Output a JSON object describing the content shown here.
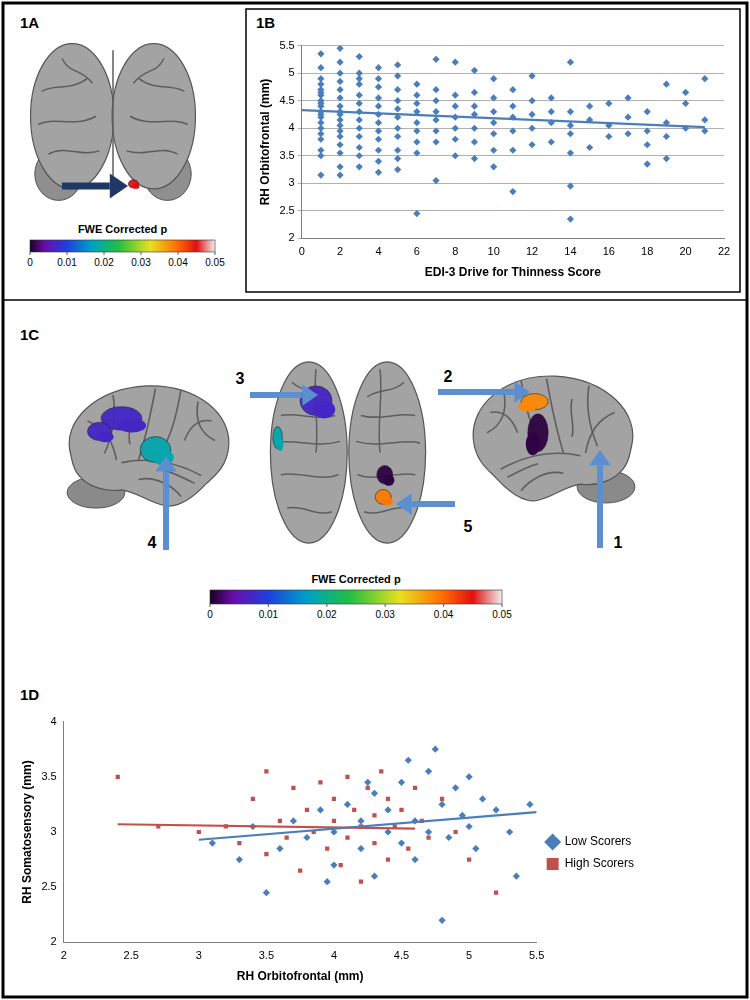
{
  "figure": {
    "panel_1A": {
      "label": "1A",
      "regions": [
        {
          "p": 0.045
        }
      ],
      "colorbar": {
        "title": "FWE Corrected p",
        "range": [
          0,
          0.05
        ],
        "ticks": [
          0,
          0.01,
          0.02,
          0.03,
          0.04,
          0.05
        ]
      }
    },
    "panel_1B": {
      "label": "1B"
    },
    "panel_1C": {
      "label": "1C",
      "regions": [
        {
          "label": "1",
          "p": 0.001
        },
        {
          "label": "2",
          "p": 0.038
        },
        {
          "label": "3",
          "p": 0.007
        },
        {
          "label": "4",
          "p": 0.018
        },
        {
          "label": "5",
          "p": 0.039
        }
      ],
      "colorbar": {
        "title": "FWE Corrected p",
        "range": [
          0,
          0.05
        ],
        "ticks": [
          0,
          0.01,
          0.02,
          0.03,
          0.04,
          0.05
        ]
      }
    },
    "panel_1D": {
      "label": "1D"
    }
  },
  "chart_data": [
    {
      "type": "scatter",
      "x_label": "EDI-3 Drive for Thinness Score",
      "y_label": "RH Orbitofrontal (mm)",
      "color": "#4a7ebb",
      "marker": "diamond",
      "grid": "y",
      "xlim": [
        0,
        22
      ],
      "xticks": [
        0,
        2,
        4,
        6,
        8,
        10,
        12,
        14,
        16,
        18,
        20,
        22
      ],
      "ylim": [
        2,
        5.5
      ],
      "yticks": [
        2,
        2.5,
        3,
        3.5,
        4,
        4.5,
        5,
        5.5
      ],
      "x": [
        1,
        1,
        1,
        1,
        1,
        1,
        1,
        1,
        1,
        1,
        1,
        1,
        1,
        1,
        1,
        1,
        1,
        1,
        1,
        1,
        2,
        2,
        2,
        2,
        2,
        2,
        2,
        2,
        2,
        2,
        2,
        2,
        2,
        2,
        2,
        2,
        2,
        3,
        3,
        3,
        3,
        3,
        3,
        3,
        3,
        3,
        3,
        3,
        3,
        3,
        4,
        4,
        4,
        4,
        4,
        4,
        4,
        4,
        4,
        4,
        4,
        4,
        5,
        5,
        5,
        5,
        5,
        5,
        5,
        5,
        5,
        5,
        5,
        6,
        6,
        6,
        6,
        6,
        6,
        6,
        6,
        6,
        7,
        7,
        7,
        7,
        7,
        7,
        7,
        7,
        8,
        8,
        8,
        8,
        8,
        8,
        8,
        9,
        9,
        9,
        9,
        9,
        9,
        9,
        10,
        10,
        10,
        10,
        10,
        10,
        10,
        11,
        11,
        11,
        11,
        11,
        11,
        12,
        12,
        12,
        12,
        12,
        13,
        13,
        13,
        13,
        14,
        14,
        14,
        14,
        14,
        14,
        14,
        15,
        15,
        15,
        16,
        16,
        16,
        17,
        17,
        17,
        18,
        18,
        18,
        18,
        19,
        19,
        19,
        19,
        20,
        20,
        20,
        21,
        21,
        21
      ],
      "values": [
        5.35,
        5.1,
        4.9,
        4.8,
        4.7,
        4.6,
        4.5,
        4.4,
        4.3,
        4.2,
        4.1,
        4.0,
        3.9,
        3.8,
        3.6,
        3.5,
        3.15,
        4.25,
        4.45,
        4.65,
        5.45,
        5.2,
        5.0,
        4.85,
        4.7,
        4.55,
        4.4,
        4.3,
        4.15,
        4.05,
        3.95,
        3.85,
        3.7,
        3.55,
        3.3,
        3.15,
        4.25,
        5.3,
        5.0,
        4.8,
        4.6,
        4.45,
        4.3,
        4.15,
        4.0,
        3.85,
        3.65,
        3.5,
        3.3,
        4.9,
        5.1,
        4.9,
        4.75,
        4.55,
        4.4,
        4.25,
        4.1,
        3.95,
        3.8,
        3.6,
        3.4,
        3.2,
        4.95,
        4.7,
        4.5,
        4.35,
        4.2,
        4.0,
        3.85,
        3.6,
        3.45,
        3.25,
        5.15,
        4.8,
        4.6,
        4.45,
        4.3,
        4.1,
        3.95,
        3.75,
        3.55,
        2.45,
        5.25,
        4.7,
        4.5,
        4.3,
        4.15,
        3.95,
        3.75,
        3.05,
        5.2,
        4.6,
        4.4,
        4.2,
        4.0,
        3.8,
        3.5,
        5.05,
        4.65,
        4.4,
        4.25,
        4.0,
        3.75,
        3.45,
        4.9,
        4.55,
        4.3,
        4.1,
        3.9,
        3.6,
        3.3,
        4.7,
        4.4,
        4.2,
        3.95,
        3.6,
        2.85,
        4.95,
        4.5,
        4.25,
        4.0,
        3.7,
        4.55,
        4.3,
        4.1,
        3.75,
        5.2,
        4.3,
        4.05,
        3.9,
        3.55,
        2.95,
        2.35,
        4.4,
        4.15,
        3.65,
        4.45,
        4.05,
        3.85,
        4.55,
        4.2,
        3.9,
        4.3,
        3.95,
        3.7,
        3.35,
        4.8,
        4.1,
        3.85,
        3.45,
        4.65,
        4.45,
        4.0,
        4.9,
        4.15,
        3.95
      ],
      "trendline": {
        "x": [
          0,
          21
        ],
        "values": [
          4.33,
          4.02
        ]
      }
    },
    {
      "type": "scatter",
      "x_label": "RH Orbitofrontal (mm)",
      "y_label": "RH Somatosensory (mm)",
      "grid": false,
      "legend": "right",
      "xlim": [
        2,
        5.5
      ],
      "xticks": [
        2,
        2.5,
        3,
        3.5,
        4,
        4.5,
        5,
        5.5
      ],
      "ylim": [
        2,
        4
      ],
      "yticks": [
        2,
        2.5,
        3,
        3.5,
        4
      ],
      "series": [
        {
          "name": "Low Scorers",
          "color": "#4a7ebb",
          "marker": "diamond",
          "x": [
            3.1,
            3.3,
            3.4,
            3.5,
            3.6,
            3.7,
            3.8,
            3.9,
            4.0,
            4.0,
            4.1,
            4.2,
            4.2,
            4.3,
            4.3,
            4.4,
            4.4,
            4.5,
            4.5,
            4.6,
            4.6,
            4.7,
            4.7,
            4.75,
            4.8,
            4.8,
            4.85,
            4.9,
            4.95,
            5.0,
            5.0,
            5.05,
            5.1,
            5.2,
            5.3,
            5.35,
            5.45,
            3.95,
            4.55,
            4.25
          ],
          "values": [
            2.9,
            2.75,
            3.05,
            2.45,
            2.85,
            3.1,
            2.95,
            3.2,
            2.7,
            3.0,
            3.25,
            2.85,
            3.1,
            3.35,
            2.6,
            3.0,
            3.2,
            3.45,
            2.9,
            3.1,
            2.75,
            3.55,
            3.0,
            3.75,
            3.25,
            2.2,
            2.95,
            3.4,
            3.15,
            3.05,
            3.5,
            2.85,
            3.3,
            3.2,
            3.0,
            2.6,
            3.25,
            2.55,
            3.65,
            3.45
          ],
          "trendline": {
            "x": [
              3.0,
              5.5
            ],
            "values": [
              2.93,
              3.18
            ]
          }
        },
        {
          "name": "High Scorers",
          "color": "#c0504d",
          "marker": "square",
          "x": [
            2.4,
            2.7,
            3.0,
            3.2,
            3.3,
            3.4,
            3.5,
            3.5,
            3.6,
            3.65,
            3.7,
            3.75,
            3.8,
            3.85,
            3.9,
            3.95,
            4.0,
            4.0,
            4.05,
            4.1,
            4.1,
            4.15,
            4.2,
            4.25,
            4.3,
            4.3,
            4.35,
            4.4,
            4.4,
            4.45,
            4.5,
            4.55,
            4.6,
            4.65,
            4.7,
            4.8,
            4.9,
            5.0,
            5.2,
            4.2
          ],
          "values": [
            3.5,
            3.05,
            3.0,
            3.05,
            2.9,
            3.3,
            3.55,
            2.8,
            3.1,
            2.95,
            3.4,
            2.65,
            3.2,
            3.0,
            3.45,
            2.85,
            3.3,
            3.1,
            2.7,
            3.5,
            2.95,
            3.2,
            3.05,
            3.4,
            2.9,
            3.15,
            3.55,
            2.75,
            3.3,
            3.05,
            3.2,
            2.85,
            3.4,
            3.1,
            2.95,
            3.3,
            3.0,
            2.75,
            2.45,
            2.55
          ],
          "trendline": {
            "x": [
              2.4,
              4.6
            ],
            "values": [
              3.07,
              3.03
            ]
          }
        }
      ]
    }
  ]
}
